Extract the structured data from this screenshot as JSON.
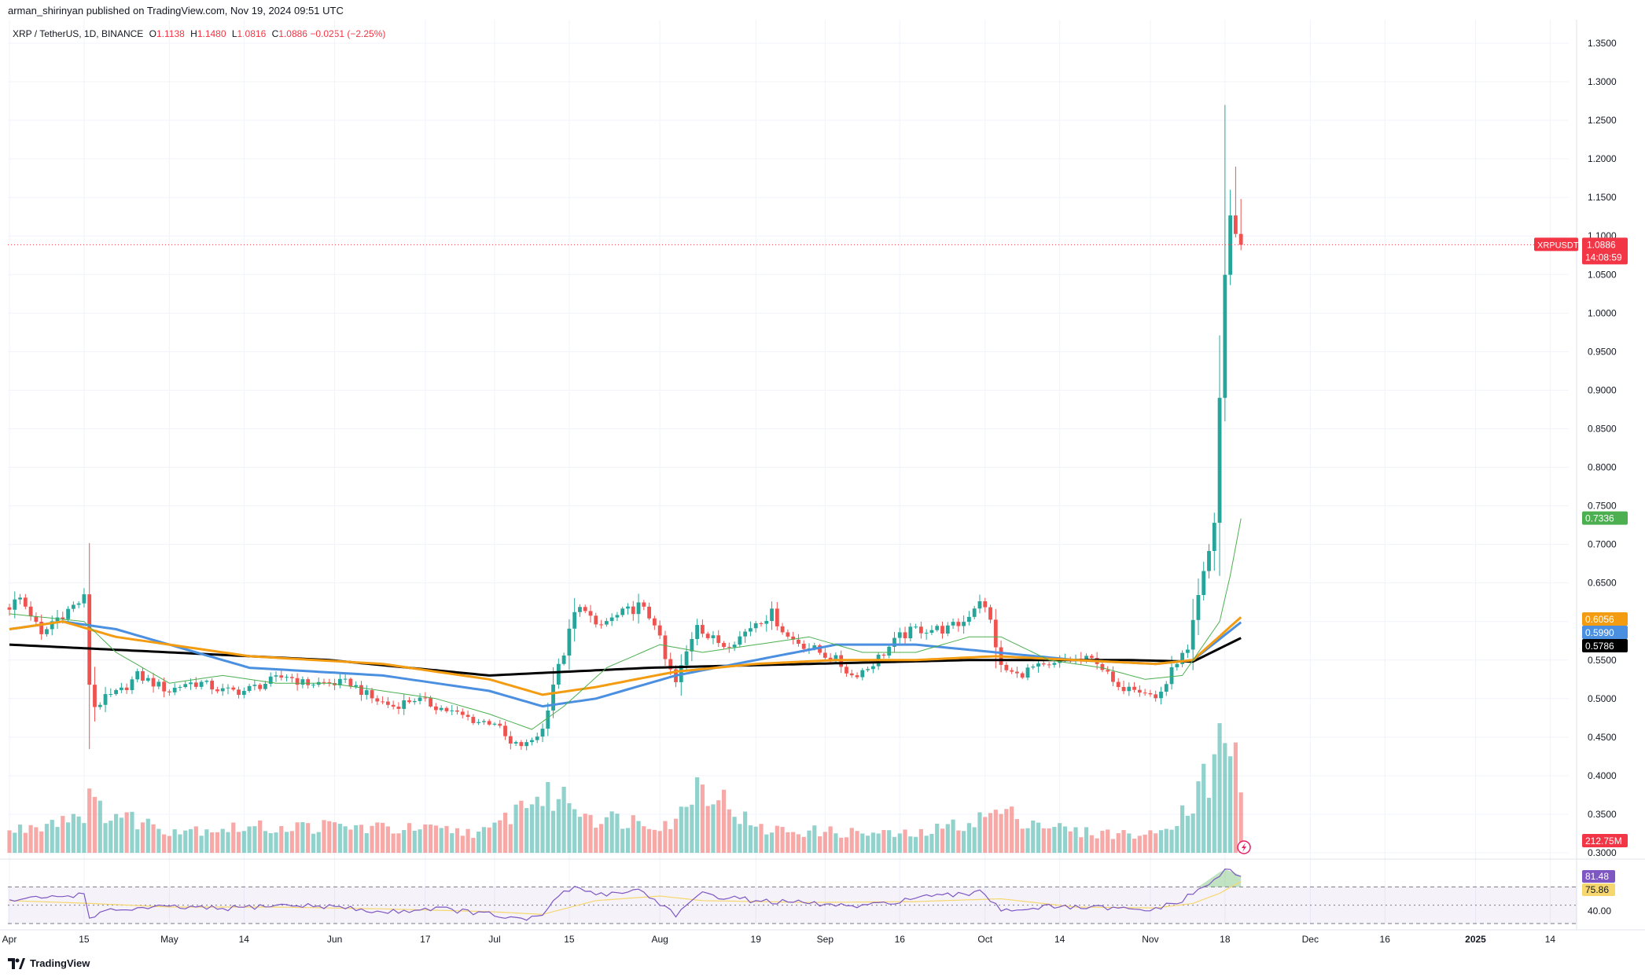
{
  "header": {
    "published_by": "arman_shirinyan published on TradingView.com, Nov 19, 2024 09:51 UTC",
    "symbol": "XRP / TetherUS, 1D, BINANCE",
    "ohlc": {
      "o_label": "O",
      "o_value": "1.1138",
      "h_label": "H",
      "h_value": "1.1480",
      "l_label": "L",
      "l_value": "1.0816",
      "c_label": "C",
      "c_value": "1.0886",
      "change": "−0.0251 (−2.25%)"
    }
  },
  "footer": {
    "brand": "TradingView"
  },
  "colors": {
    "up": "#26a69a",
    "down": "#ef5350",
    "ma_green": "#4caf50",
    "ma_blue": "#4a8fe0",
    "ma_orange": "#f39c12",
    "ma_black": "#000000",
    "rsi": "#7e57c2",
    "rsi_ma": "#f5d76e",
    "grid": "#f0f3fa"
  },
  "chart_data": [
    {
      "type": "candlestick",
      "title": "XRP / TetherUS, 1D, BINANCE",
      "ylim": [
        0.3,
        1.37
      ],
      "price_ticks": [
        "1.3500",
        "1.3000",
        "1.2500",
        "1.2000",
        "1.1500",
        "1.1000",
        "1.0500",
        "1.0000",
        "0.9500",
        "0.9000",
        "0.8500",
        "0.8000",
        "0.7500",
        "0.7000",
        "0.6500",
        "0.6000",
        "0.5500",
        "0.5000",
        "0.4500",
        "0.4000",
        "0.3500",
        "0.3000"
      ],
      "x_labels": [
        "Apr",
        "15",
        "May",
        "14",
        "Jun",
        "17",
        "Jul",
        "15",
        "Aug",
        "19",
        "Sep",
        "16",
        "Oct",
        "14",
        "Nov",
        "18",
        "Dec",
        "16",
        "2025",
        "14"
      ],
      "x_label_days": [
        0,
        14,
        30,
        44,
        61,
        78,
        91,
        105,
        122,
        140,
        153,
        167,
        183,
        197,
        214,
        228,
        244,
        258,
        275,
        289
      ],
      "last_day": 231,
      "anchor_closes": [
        [
          0,
          0.62
        ],
        [
          2,
          0.63
        ],
        [
          4,
          0.61
        ],
        [
          6,
          0.58
        ],
        [
          8,
          0.6
        ],
        [
          10,
          0.61
        ],
        [
          12,
          0.62
        ],
        [
          14,
          0.63
        ],
        [
          15,
          0.52
        ],
        [
          16,
          0.49
        ],
        [
          18,
          0.5
        ],
        [
          21,
          0.51
        ],
        [
          24,
          0.53
        ],
        [
          27,
          0.52
        ],
        [
          30,
          0.51
        ],
        [
          33,
          0.52
        ],
        [
          36,
          0.52
        ],
        [
          40,
          0.51
        ],
        [
          44,
          0.51
        ],
        [
          48,
          0.52
        ],
        [
          52,
          0.53
        ],
        [
          55,
          0.52
        ],
        [
          58,
          0.52
        ],
        [
          61,
          0.52
        ],
        [
          64,
          0.52
        ],
        [
          68,
          0.5
        ],
        [
          72,
          0.49
        ],
        [
          76,
          0.5
        ],
        [
          80,
          0.49
        ],
        [
          84,
          0.48
        ],
        [
          88,
          0.47
        ],
        [
          91,
          0.47
        ],
        [
          94,
          0.44
        ],
        [
          97,
          0.44
        ],
        [
          100,
          0.46
        ],
        [
          102,
          0.52
        ],
        [
          104,
          0.56
        ],
        [
          106,
          0.61
        ],
        [
          108,
          0.62
        ],
        [
          110,
          0.59
        ],
        [
          112,
          0.6
        ],
        [
          115,
          0.61
        ],
        [
          118,
          0.62
        ],
        [
          121,
          0.6
        ],
        [
          123,
          0.55
        ],
        [
          125,
          0.52
        ],
        [
          127,
          0.56
        ],
        [
          129,
          0.6
        ],
        [
          131,
          0.58
        ],
        [
          134,
          0.57
        ],
        [
          137,
          0.58
        ],
        [
          140,
          0.6
        ],
        [
          143,
          0.61
        ],
        [
          146,
          0.58
        ],
        [
          149,
          0.57
        ],
        [
          152,
          0.56
        ],
        [
          155,
          0.55
        ],
        [
          158,
          0.53
        ],
        [
          161,
          0.54
        ],
        [
          164,
          0.56
        ],
        [
          167,
          0.58
        ],
        [
          170,
          0.59
        ],
        [
          173,
          0.59
        ],
        [
          176,
          0.59
        ],
        [
          179,
          0.6
        ],
        [
          182,
          0.63
        ],
        [
          184,
          0.6
        ],
        [
          186,
          0.54
        ],
        [
          189,
          0.53
        ],
        [
          192,
          0.54
        ],
        [
          195,
          0.54
        ],
        [
          198,
          0.55
        ],
        [
          201,
          0.55
        ],
        [
          204,
          0.55
        ],
        [
          206,
          0.53
        ],
        [
          208,
          0.51
        ],
        [
          210,
          0.52
        ],
        [
          213,
          0.51
        ],
        [
          215,
          0.5
        ],
        [
          217,
          0.52
        ],
        [
          219,
          0.55
        ],
        [
          221,
          0.56
        ],
        [
          223,
          0.63
        ],
        [
          225,
          0.69
        ],
        [
          226,
          0.73
        ],
        [
          227,
          0.89
        ],
        [
          228,
          1.05
        ],
        [
          229,
          1.12
        ],
        [
          230,
          1.11
        ],
        [
          231,
          1.0886
        ]
      ],
      "moving_averages": [
        {
          "color": "#000000",
          "last_value": 0.5786,
          "anchors": [
            [
              0,
              0.57
            ],
            [
              30,
              0.56
            ],
            [
              60,
              0.55
            ],
            [
              90,
              0.53
            ],
            [
              120,
              0.54
            ],
            [
              150,
              0.545
            ],
            [
              180,
              0.55
            ],
            [
              210,
              0.55
            ],
            [
              222,
              0.548
            ],
            [
              231,
              0.5786
            ]
          ]
        },
        {
          "color": "#4a8fe0",
          "last_value": 0.599,
          "anchors": [
            [
              0,
              0.59
            ],
            [
              10,
              0.6
            ],
            [
              20,
              0.59
            ],
            [
              30,
              0.57
            ],
            [
              45,
              0.54
            ],
            [
              70,
              0.53
            ],
            [
              90,
              0.51
            ],
            [
              100,
              0.49
            ],
            [
              110,
              0.5
            ],
            [
              125,
              0.53
            ],
            [
              140,
              0.55
            ],
            [
              155,
              0.57
            ],
            [
              170,
              0.57
            ],
            [
              185,
              0.56
            ],
            [
              200,
              0.55
            ],
            [
              215,
              0.545
            ],
            [
              222,
              0.55
            ],
            [
              231,
              0.599
            ]
          ]
        },
        {
          "color": "#f39c12",
          "last_value": 0.6056,
          "anchors": [
            [
              0,
              0.59
            ],
            [
              10,
              0.6
            ],
            [
              20,
              0.58
            ],
            [
              30,
              0.57
            ],
            [
              45,
              0.555
            ],
            [
              70,
              0.545
            ],
            [
              90,
              0.525
            ],
            [
              100,
              0.505
            ],
            [
              110,
              0.515
            ],
            [
              125,
              0.535
            ],
            [
              140,
              0.545
            ],
            [
              155,
              0.55
            ],
            [
              170,
              0.55
            ],
            [
              185,
              0.555
            ],
            [
              200,
              0.55
            ],
            [
              215,
              0.545
            ],
            [
              222,
              0.55
            ],
            [
              231,
              0.6056
            ]
          ]
        },
        {
          "color": "#4caf50",
          "last_value": 0.7336,
          "anchors": [
            [
              0,
              0.61
            ],
            [
              14,
              0.6
            ],
            [
              20,
              0.56
            ],
            [
              30,
              0.52
            ],
            [
              40,
              0.53
            ],
            [
              50,
              0.52
            ],
            [
              60,
              0.52
            ],
            [
              70,
              0.51
            ],
            [
              80,
              0.5
            ],
            [
              90,
              0.48
            ],
            [
              98,
              0.46
            ],
            [
              104,
              0.49
            ],
            [
              112,
              0.54
            ],
            [
              122,
              0.57
            ],
            [
              130,
              0.56
            ],
            [
              140,
              0.57
            ],
            [
              150,
              0.58
            ],
            [
              160,
              0.56
            ],
            [
              170,
              0.56
            ],
            [
              180,
              0.58
            ],
            [
              186,
              0.58
            ],
            [
              195,
              0.55
            ],
            [
              205,
              0.54
            ],
            [
              213,
              0.525
            ],
            [
              220,
              0.53
            ],
            [
              224,
              0.57
            ],
            [
              227,
              0.6
            ],
            [
              229,
              0.66
            ],
            [
              231,
              0.7336
            ]
          ]
        }
      ],
      "volume": {
        "last_label": "212.75M",
        "anchors": [
          [
            0,
            0.35
          ],
          [
            14,
            0.7
          ],
          [
            15,
            1.0
          ],
          [
            16,
            0.75
          ],
          [
            30,
            0.4
          ],
          [
            60,
            0.45
          ],
          [
            90,
            0.35
          ],
          [
            97,
            0.9
          ],
          [
            104,
            0.95
          ],
          [
            110,
            0.6
          ],
          [
            125,
            0.5
          ],
          [
            128,
            1.1
          ],
          [
            130,
            1.2
          ],
          [
            140,
            0.4
          ],
          [
            170,
            0.3
          ],
          [
            183,
            0.6
          ],
          [
            185,
            0.7
          ],
          [
            200,
            0.35
          ],
          [
            215,
            0.3
          ],
          [
            221,
            0.8
          ],
          [
            223,
            1.0
          ],
          [
            224,
            2.0
          ],
          [
            225,
            1.2
          ],
          [
            226,
            1.5
          ],
          [
            227,
            1.8
          ],
          [
            228,
            2.3
          ],
          [
            229,
            1.4
          ],
          [
            230,
            1.6
          ],
          [
            231,
            1.0
          ]
        ]
      },
      "price_labels": [
        {
          "text": "XRPUSDT",
          "value": 1.0886,
          "color": "#f23645"
        },
        {
          "text": "1.0886",
          "value": 1.0886,
          "color": "#f23645"
        },
        {
          "text": "14:08:59",
          "value": 1.0886,
          "color": "#f23645"
        },
        {
          "text": "0.7336",
          "value": 0.7336,
          "color": "#4caf50"
        },
        {
          "text": "0.6056",
          "value": 0.6056,
          "color": "#f39c12"
        },
        {
          "text": "0.5990",
          "value": 0.599,
          "color": "#4a8fe0"
        },
        {
          "text": "0.5786",
          "value": 0.5786,
          "color": "#000000"
        },
        {
          "text": "212.75M",
          "value": null,
          "color": "#f23645"
        }
      ]
    },
    {
      "type": "line",
      "title": "RSI",
      "ylim": [
        30,
        90
      ],
      "levels": [
        70,
        50,
        30
      ],
      "rsi_last_label": "81.48",
      "rsi_ma_last_label": "75.86",
      "tick_label": "40.00",
      "rsi_anchors": [
        [
          0,
          55
        ],
        [
          10,
          60
        ],
        [
          14,
          62
        ],
        [
          15,
          38
        ],
        [
          20,
          45
        ],
        [
          30,
          48
        ],
        [
          40,
          46
        ],
        [
          50,
          50
        ],
        [
          60,
          49
        ],
        [
          70,
          42
        ],
        [
          80,
          47
        ],
        [
          90,
          40
        ],
        [
          97,
          33
        ],
        [
          100,
          40
        ],
        [
          104,
          66
        ],
        [
          106,
          68
        ],
        [
          112,
          62
        ],
        [
          118,
          67
        ],
        [
          122,
          52
        ],
        [
          125,
          40
        ],
        [
          130,
          62
        ],
        [
          140,
          55
        ],
        [
          150,
          52
        ],
        [
          160,
          48
        ],
        [
          170,
          58
        ],
        [
          180,
          62
        ],
        [
          182,
          68
        ],
        [
          186,
          45
        ],
        [
          195,
          48
        ],
        [
          205,
          47
        ],
        [
          213,
          44
        ],
        [
          219,
          52
        ],
        [
          222,
          63
        ],
        [
          225,
          72
        ],
        [
          227,
          84
        ],
        [
          228,
          88
        ],
        [
          229,
          86
        ],
        [
          230,
          84
        ],
        [
          231,
          81.48
        ]
      ],
      "rsi_ma_anchors": [
        [
          0,
          55
        ],
        [
          15,
          52
        ],
        [
          30,
          48
        ],
        [
          50,
          48
        ],
        [
          70,
          46
        ],
        [
          90,
          43
        ],
        [
          100,
          40
        ],
        [
          110,
          55
        ],
        [
          122,
          60
        ],
        [
          130,
          55
        ],
        [
          150,
          53
        ],
        [
          170,
          54
        ],
        [
          186,
          57
        ],
        [
          200,
          48
        ],
        [
          215,
          47
        ],
        [
          222,
          52
        ],
        [
          227,
          63
        ],
        [
          231,
          75.86
        ]
      ]
    }
  ]
}
